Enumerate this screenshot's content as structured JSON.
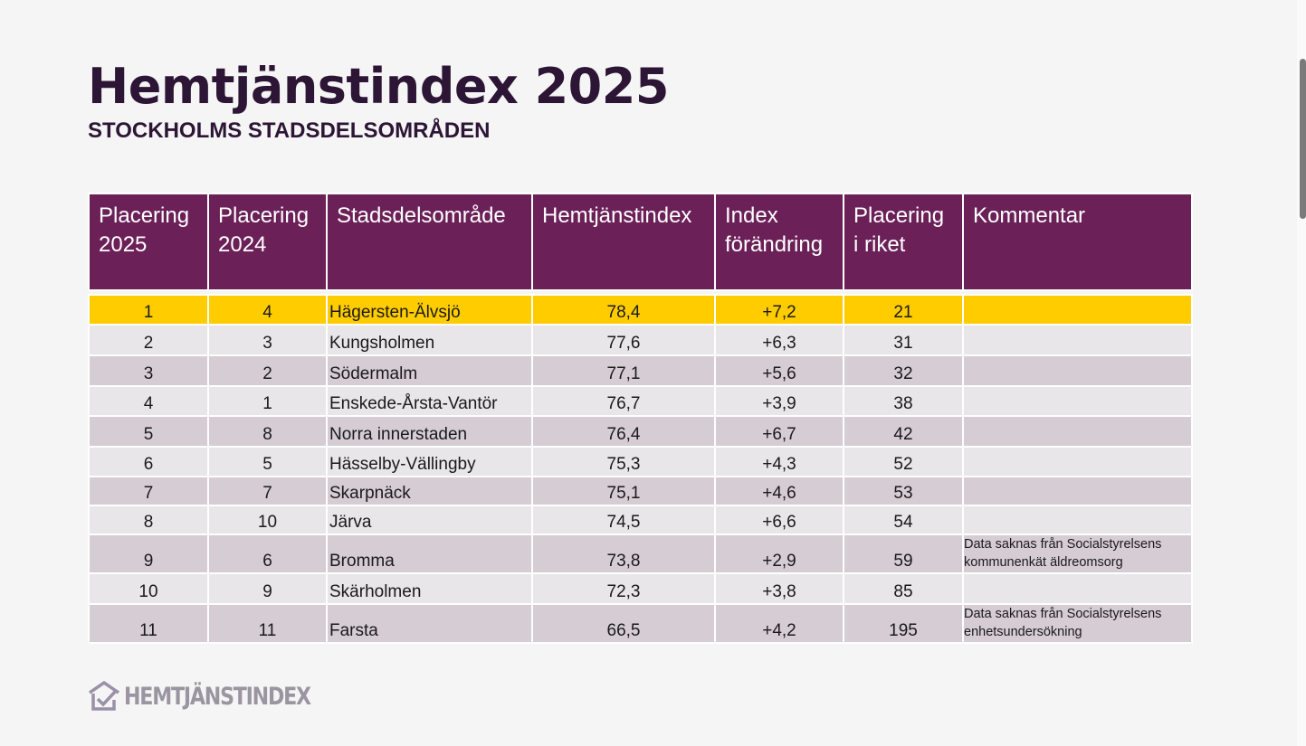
{
  "title": "Hemtjänstindex 2025",
  "subtitle": "STOCKHOLMS STADSDELSOMRÅDEN",
  "table": {
    "headers": [
      "Placering 2025",
      "Placering 2024",
      "Stadsdelsområde",
      "Hemtjänstindex",
      "Index förändring",
      "Placering i riket",
      "Kommentar"
    ],
    "rows": [
      [
        "1",
        "4",
        "Hägersten-Älvsjö",
        "78,4",
        "+7,2",
        "21",
        ""
      ],
      [
        "2",
        "3",
        "Kungsholmen",
        "77,6",
        "+6,3",
        "31",
        ""
      ],
      [
        "3",
        "2",
        "Södermalm",
        "77,1",
        "+5,6",
        "32",
        ""
      ],
      [
        "4",
        "1",
        "Enskede-Årsta-Vantör",
        "76,7",
        "+3,9",
        "38",
        ""
      ],
      [
        "5",
        "8",
        "Norra innerstaden",
        "76,4",
        "+6,7",
        "42",
        ""
      ],
      [
        "6",
        "5",
        "Hässelby-Vällingby",
        "75,3",
        "+4,3",
        "52",
        ""
      ],
      [
        "7",
        "7",
        "Skarpnäck",
        "75,1",
        "+4,6",
        "53",
        ""
      ],
      [
        "8",
        "10",
        "Järva",
        "74,5",
        "+6,6",
        "54",
        ""
      ],
      [
        "9",
        "6",
        "Bromma",
        "73,8",
        "+2,9",
        "59",
        "Data saknas från Socialstyrelsens kommunenkät äldreomsorg"
      ],
      [
        "10",
        "9",
        "Skärholmen",
        "72,3",
        "+3,8",
        "85",
        ""
      ],
      [
        "11",
        "11",
        "Farsta",
        "66,5",
        "+4,2",
        "195",
        "Data saknas från Socialstyrelsens enhetsundersökning"
      ]
    ]
  },
  "logo_text": "HEMTJÄNSTINDEX",
  "colors": {
    "header": "#6b2158",
    "highlight": "#ffcc00",
    "title": "#2d1535"
  }
}
